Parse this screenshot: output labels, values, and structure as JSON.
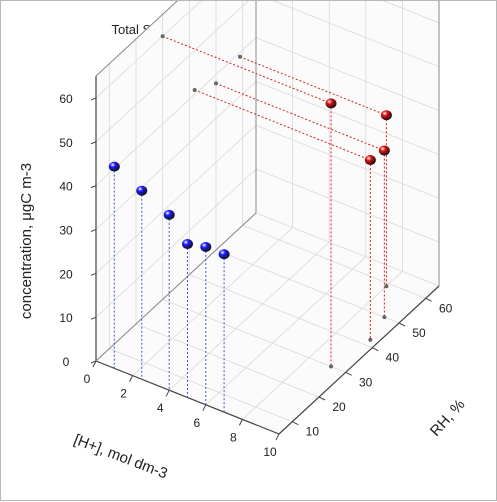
{
  "chart_data": {
    "type": "scatter",
    "title": "Total Secondary Organic Carbon “SOC”",
    "zlabel": "concentration, μgC m-3",
    "xlabel": "[H+], mol dm-3",
    "ylabel": "RH, %",
    "x_ticks": [
      "0",
      "2",
      "4",
      "6",
      "8",
      "10"
    ],
    "y_ticks": [
      "10",
      "20",
      "30",
      "40",
      "50",
      "60"
    ],
    "z_ticks": [
      "0",
      "10",
      "20",
      "30",
      "40",
      "50",
      "60"
    ],
    "xlim": [
      0,
      10
    ],
    "ylim": [
      5,
      65
    ],
    "zlim": [
      0,
      65
    ],
    "grid": true,
    "series": [
      {
        "color": "#1a1aff",
        "drop_lines": "blue",
        "points": [
          {
            "x": 1.0,
            "y": 5,
            "z": 46
          },
          {
            "x": 2.5,
            "y": 5,
            "z": 43
          },
          {
            "x": 4.0,
            "y": 5,
            "z": 40
          },
          {
            "x": 5.0,
            "y": 5,
            "z": 35
          },
          {
            "x": 6.0,
            "y": 5,
            "z": 36
          },
          {
            "x": 7.0,
            "y": 5,
            "z": 36
          }
        ]
      },
      {
        "color": "#e01010",
        "drop_lines": "red",
        "projection_to": "back wall",
        "points": [
          {
            "x": 9.2,
            "y": 30,
            "z": 60
          },
          {
            "x": 9.6,
            "y": 42,
            "z": 41
          },
          {
            "x": 9.2,
            "y": 50,
            "z": 38
          },
          {
            "x": 8.0,
            "y": 59,
            "z": 39
          }
        ]
      }
    ]
  }
}
